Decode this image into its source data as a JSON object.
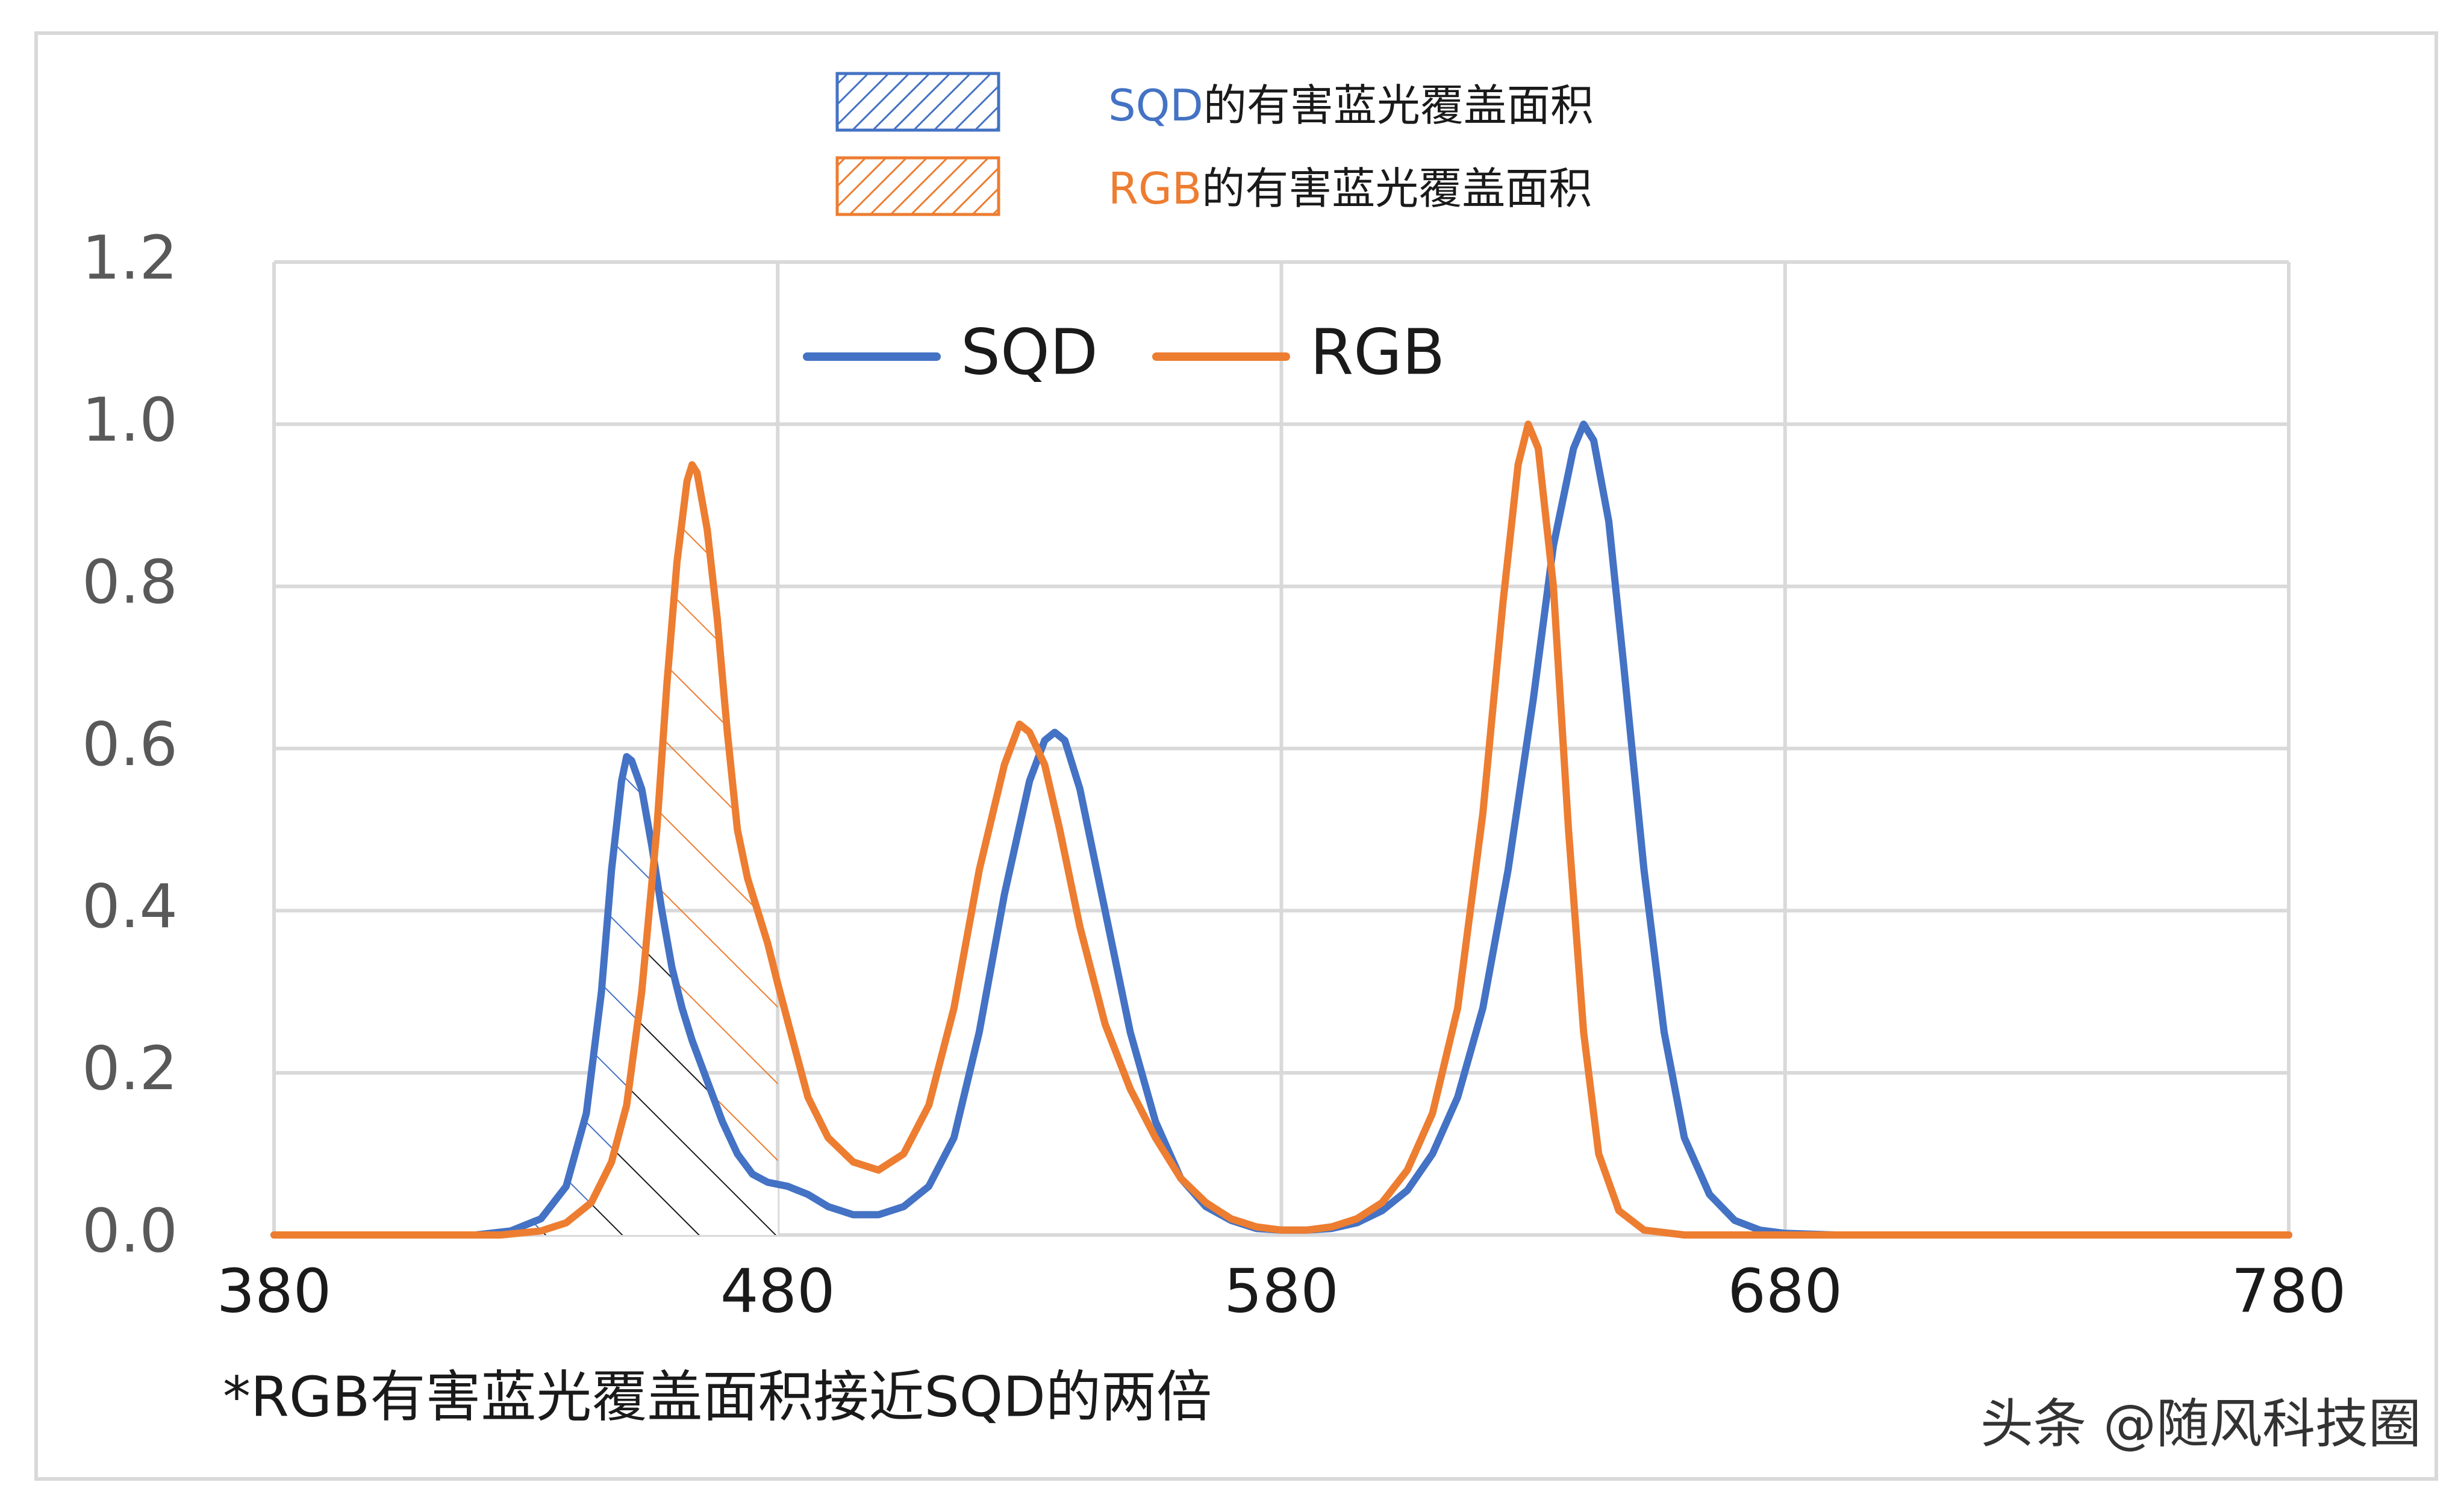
{
  "chart_data": {
    "type": "line",
    "title": "",
    "xlabel": "",
    "ylabel": "",
    "xlim": [
      380,
      780
    ],
    "ylim": [
      0,
      1.2
    ],
    "x_ticks": [
      "380",
      "480",
      "580",
      "680",
      "780"
    ],
    "y_ticks": [
      "0.0",
      "0.2",
      "0.4",
      "0.6",
      "0.8",
      "1.0",
      "1.2"
    ],
    "grid": true,
    "legend_position": "top-center",
    "series": [
      {
        "name": "SQD",
        "color": "#4472C4",
        "points": [
          [
            380,
            0
          ],
          [
            420,
            0.0
          ],
          [
            427,
            0.005
          ],
          [
            433,
            0.02
          ],
          [
            438,
            0.06
          ],
          [
            442,
            0.15
          ],
          [
            445,
            0.3
          ],
          [
            447,
            0.45
          ],
          [
            449,
            0.56
          ],
          [
            450,
            0.59
          ],
          [
            451,
            0.585
          ],
          [
            453,
            0.55
          ],
          [
            455,
            0.48
          ],
          [
            457,
            0.4
          ],
          [
            459,
            0.33
          ],
          [
            461,
            0.28
          ],
          [
            463,
            0.24
          ],
          [
            466,
            0.19
          ],
          [
            469,
            0.14
          ],
          [
            472,
            0.1
          ],
          [
            475,
            0.075
          ],
          [
            478,
            0.065
          ],
          [
            482,
            0.06
          ],
          [
            486,
            0.05
          ],
          [
            490,
            0.035
          ],
          [
            495,
            0.025
          ],
          [
            500,
            0.025
          ],
          [
            505,
            0.035
          ],
          [
            510,
            0.06
          ],
          [
            515,
            0.12
          ],
          [
            520,
            0.25
          ],
          [
            525,
            0.42
          ],
          [
            530,
            0.56
          ],
          [
            533,
            0.61
          ],
          [
            535,
            0.62
          ],
          [
            537,
            0.61
          ],
          [
            540,
            0.55
          ],
          [
            545,
            0.4
          ],
          [
            550,
            0.25
          ],
          [
            555,
            0.14
          ],
          [
            560,
            0.07
          ],
          [
            565,
            0.035
          ],
          [
            570,
            0.018
          ],
          [
            575,
            0.008
          ],
          [
            580,
            0.006
          ],
          [
            585,
            0.006
          ],
          [
            590,
            0.008
          ],
          [
            595,
            0.015
          ],
          [
            600,
            0.03
          ],
          [
            605,
            0.055
          ],
          [
            610,
            0.1
          ],
          [
            615,
            0.17
          ],
          [
            620,
            0.28
          ],
          [
            625,
            0.45
          ],
          [
            630,
            0.66
          ],
          [
            634,
            0.85
          ],
          [
            638,
            0.97
          ],
          [
            640,
            1.0
          ],
          [
            642,
            0.98
          ],
          [
            645,
            0.88
          ],
          [
            648,
            0.7
          ],
          [
            652,
            0.45
          ],
          [
            656,
            0.25
          ],
          [
            660,
            0.12
          ],
          [
            665,
            0.05
          ],
          [
            670,
            0.018
          ],
          [
            675,
            0.006
          ],
          [
            680,
            0.002
          ],
          [
            690,
            0
          ],
          [
            780,
            0
          ]
        ]
      },
      {
        "name": "RGB",
        "color": "#ED7D31",
        "points": [
          [
            380,
            0
          ],
          [
            425,
            0.0
          ],
          [
            433,
            0.005
          ],
          [
            438,
            0.015
          ],
          [
            443,
            0.04
          ],
          [
            447,
            0.09
          ],
          [
            450,
            0.16
          ],
          [
            453,
            0.3
          ],
          [
            456,
            0.5
          ],
          [
            458,
            0.68
          ],
          [
            460,
            0.83
          ],
          [
            462,
            0.93
          ],
          [
            463,
            0.95
          ],
          [
            464,
            0.94
          ],
          [
            466,
            0.87
          ],
          [
            468,
            0.76
          ],
          [
            470,
            0.62
          ],
          [
            472,
            0.5
          ],
          [
            474,
            0.44
          ],
          [
            476,
            0.4
          ],
          [
            478,
            0.36
          ],
          [
            480,
            0.31
          ],
          [
            483,
            0.24
          ],
          [
            486,
            0.17
          ],
          [
            490,
            0.12
          ],
          [
            495,
            0.09
          ],
          [
            500,
            0.08
          ],
          [
            505,
            0.1
          ],
          [
            510,
            0.16
          ],
          [
            515,
            0.28
          ],
          [
            520,
            0.45
          ],
          [
            525,
            0.58
          ],
          [
            528,
            0.63
          ],
          [
            530,
            0.62
          ],
          [
            533,
            0.58
          ],
          [
            536,
            0.5
          ],
          [
            540,
            0.38
          ],
          [
            545,
            0.26
          ],
          [
            550,
            0.18
          ],
          [
            555,
            0.12
          ],
          [
            560,
            0.07
          ],
          [
            565,
            0.04
          ],
          [
            570,
            0.02
          ],
          [
            575,
            0.01
          ],
          [
            580,
            0.006
          ],
          [
            585,
            0.006
          ],
          [
            590,
            0.01
          ],
          [
            595,
            0.02
          ],
          [
            600,
            0.04
          ],
          [
            605,
            0.08
          ],
          [
            610,
            0.15
          ],
          [
            615,
            0.28
          ],
          [
            620,
            0.52
          ],
          [
            624,
            0.78
          ],
          [
            627,
            0.95
          ],
          [
            629,
            1.0
          ],
          [
            631,
            0.97
          ],
          [
            634,
            0.8
          ],
          [
            637,
            0.5
          ],
          [
            640,
            0.25
          ],
          [
            643,
            0.1
          ],
          [
            647,
            0.03
          ],
          [
            652,
            0.006
          ],
          [
            660,
            0
          ],
          [
            780,
            0
          ]
        ]
      }
    ],
    "hatch_legend": [
      {
        "label_prefix": "SQD",
        "label_suffix": "的有害蓝光覆盖面积",
        "color": "#4472C4"
      },
      {
        "label_prefix": "RGB",
        "label_suffix": "的有害蓝光覆盖面积",
        "color": "#ED7D31"
      }
    ],
    "hatched_region_x": [
      430,
      480
    ],
    "footnote": "*RGB有害蓝光覆盖面积接近SQD的两倍"
  },
  "watermark": "头条 @随风科技圈"
}
